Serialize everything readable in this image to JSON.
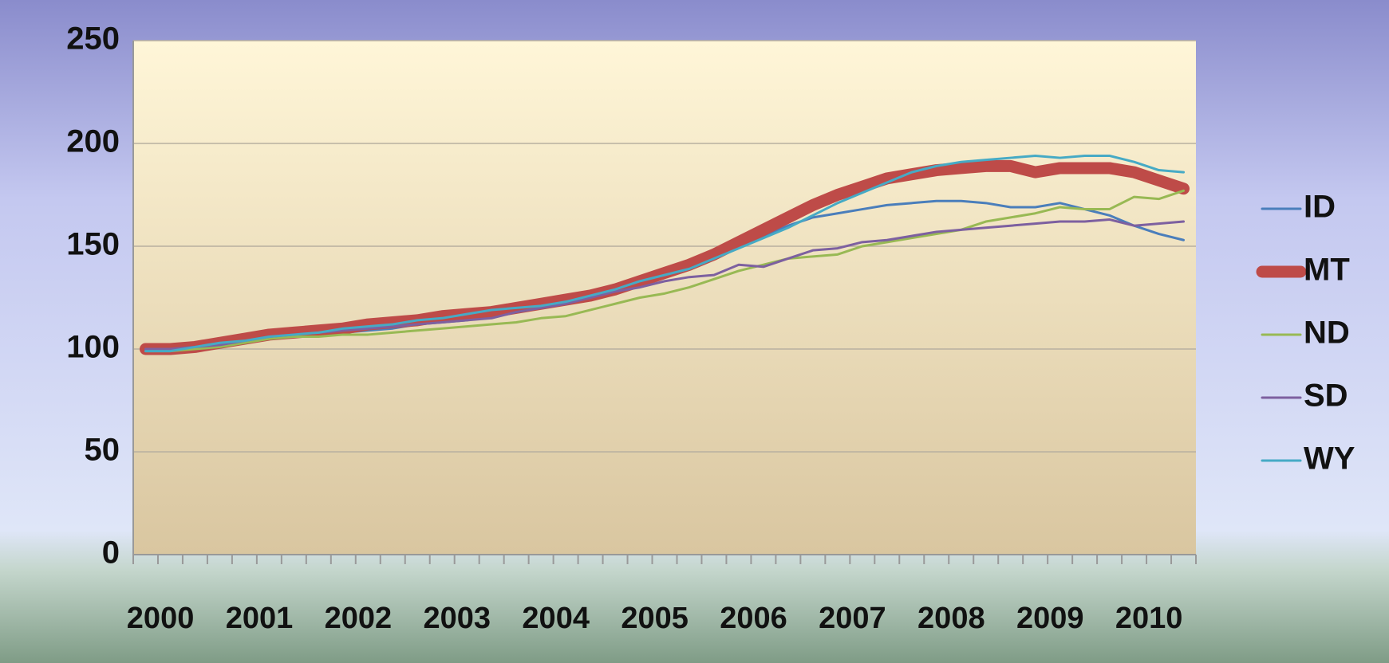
{
  "chart_data": {
    "type": "line",
    "categories": [
      "2000",
      null,
      null,
      null,
      "2001",
      null,
      null,
      null,
      "2002",
      null,
      null,
      null,
      "2003",
      null,
      null,
      null,
      "2004",
      null,
      null,
      null,
      "2005",
      null,
      null,
      null,
      "2006",
      null,
      null,
      null,
      "2007",
      null,
      null,
      null,
      "2008",
      null,
      null,
      null,
      "2009",
      null,
      null,
      null,
      "2010",
      null,
      null
    ],
    "series": [
      {
        "name": "ID",
        "color": "#4a7ebb",
        "line_width": 3,
        "values": [
          99,
          100,
          101,
          103,
          104,
          105,
          106,
          107,
          108,
          109,
          110,
          112,
          113,
          114,
          116,
          118,
          120,
          122,
          125,
          128,
          131,
          135,
          142,
          146,
          150,
          155,
          160,
          164,
          166,
          168,
          170,
          171,
          172,
          172,
          171,
          169,
          169,
          171,
          168,
          165,
          160,
          156,
          153
        ]
      },
      {
        "name": "MT",
        "color": "#be4b48",
        "line_width": 15,
        "values": [
          100,
          100,
          101,
          103,
          105,
          107,
          108,
          109,
          110,
          112,
          113,
          114,
          116,
          117,
          118,
          120,
          122,
          124,
          126,
          129,
          133,
          137,
          141,
          146,
          152,
          158,
          164,
          170,
          175,
          179,
          183,
          185,
          187,
          188,
          189,
          189,
          186,
          188,
          188,
          188,
          186,
          182,
          178
        ]
      },
      {
        "name": "ND",
        "color": "#98b954",
        "line_width": 3,
        "values": [
          99,
          99,
          100,
          101,
          103,
          105,
          106,
          106,
          107,
          107,
          108,
          109,
          110,
          111,
          112,
          113,
          115,
          116,
          119,
          122,
          125,
          127,
          130,
          134,
          138,
          141,
          144,
          145,
          146,
          150,
          152,
          154,
          156,
          158,
          162,
          164,
          166,
          169,
          168,
          168,
          174,
          173,
          177
        ]
      },
      {
        "name": "SD",
        "color": "#7d60a0",
        "line_width": 3,
        "values": [
          100,
          100,
          101,
          102,
          104,
          106,
          107,
          108,
          109,
          110,
          111,
          112,
          113,
          114,
          115,
          118,
          120,
          122,
          125,
          128,
          130,
          133,
          135,
          136,
          141,
          140,
          144,
          148,
          149,
          152,
          153,
          155,
          157,
          158,
          159,
          160,
          161,
          162,
          162,
          163,
          160,
          161,
          162
        ]
      },
      {
        "name": "WY",
        "color": "#46aac5",
        "line_width": 3,
        "values": [
          99,
          99,
          101,
          103,
          104,
          106,
          107,
          108,
          110,
          111,
          112,
          114,
          115,
          117,
          119,
          120,
          121,
          123,
          126,
          129,
          133,
          136,
          139,
          144,
          149,
          154,
          159,
          165,
          171,
          176,
          181,
          186,
          189,
          191,
          192,
          193,
          194,
          193,
          194,
          194,
          191,
          187,
          186
        ]
      }
    ],
    "ylim": [
      0,
      250
    ],
    "yticks": [
      0,
      50,
      100,
      150,
      200,
      250
    ],
    "grid": true
  }
}
